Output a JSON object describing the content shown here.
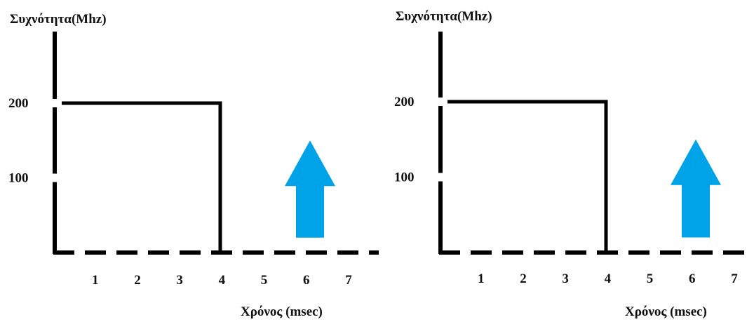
{
  "colors": {
    "axis": "#000000",
    "arrow": "#00a2e8"
  },
  "chart_data": [
    {
      "type": "line",
      "ylabel": "Συχνότητα(Mhz)",
      "xlabel": "Χρόνος (msec)",
      "x_ticks": [
        "1",
        "2",
        "3",
        "4",
        "5",
        "6",
        "7"
      ],
      "y_ticks": [
        "100",
        "200"
      ],
      "xlim": [
        0,
        7.6
      ],
      "ylim": [
        0,
        280
      ],
      "series": [
        {
          "x": [
            0,
            4,
            4
          ],
          "y": [
            200,
            200,
            0
          ]
        }
      ],
      "arrow": {
        "icon": "up-arrow-icon",
        "x": 6,
        "y": [
          20,
          150
        ]
      }
    },
    {
      "type": "line",
      "ylabel": "Συχνότητα(Mhz)",
      "xlabel": "Χρόνος (msec)",
      "x_ticks": [
        "1",
        "2",
        "3",
        "4",
        "5",
        "6",
        "7"
      ],
      "y_ticks": [
        "100",
        "200"
      ],
      "xlim": [
        0,
        7.6
      ],
      "ylim": [
        0,
        280
      ],
      "series": [
        {
          "x": [
            0,
            4,
            4
          ],
          "y": [
            200,
            200,
            0
          ]
        }
      ],
      "arrow": {
        "icon": "up-arrow-icon",
        "x": 6,
        "y": [
          20,
          150
        ]
      }
    }
  ]
}
